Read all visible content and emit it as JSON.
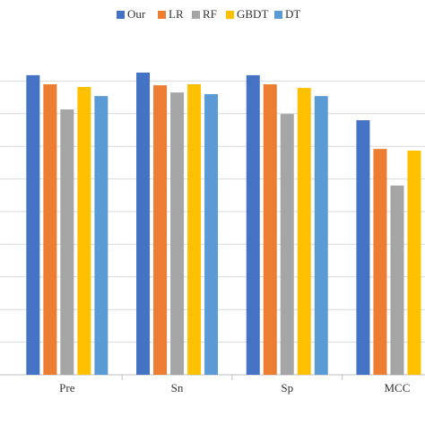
{
  "chart_data": {
    "type": "bar",
    "categories": [
      "Pre",
      "Sn",
      "Sp",
      "MCC"
    ],
    "series": [
      {
        "name": "Our",
        "color": "#4472c4",
        "values": [
          0.918,
          0.926,
          0.918,
          0.78
        ]
      },
      {
        "name": "LR",
        "color": "#ed7d31",
        "values": [
          0.89,
          0.887,
          0.89,
          0.692
        ]
      },
      {
        "name": "RF",
        "color": "#a5a5a5",
        "values": [
          0.813,
          0.865,
          0.799,
          0.58
        ]
      },
      {
        "name": "GBDT",
        "color": "#ffc000",
        "values": [
          0.882,
          0.89,
          0.879,
          0.687
        ]
      },
      {
        "name": "DT",
        "color": "#5b9bd5",
        "values": [
          0.854,
          0.86,
          0.854,
          null
        ]
      }
    ],
    "ylim": [
      0,
      1
    ],
    "yticks": [
      0.1,
      0.2,
      0.3,
      0.4,
      0.5,
      0.6,
      0.7,
      0.8,
      0.9
    ],
    "grid": true,
    "legend": "top"
  }
}
